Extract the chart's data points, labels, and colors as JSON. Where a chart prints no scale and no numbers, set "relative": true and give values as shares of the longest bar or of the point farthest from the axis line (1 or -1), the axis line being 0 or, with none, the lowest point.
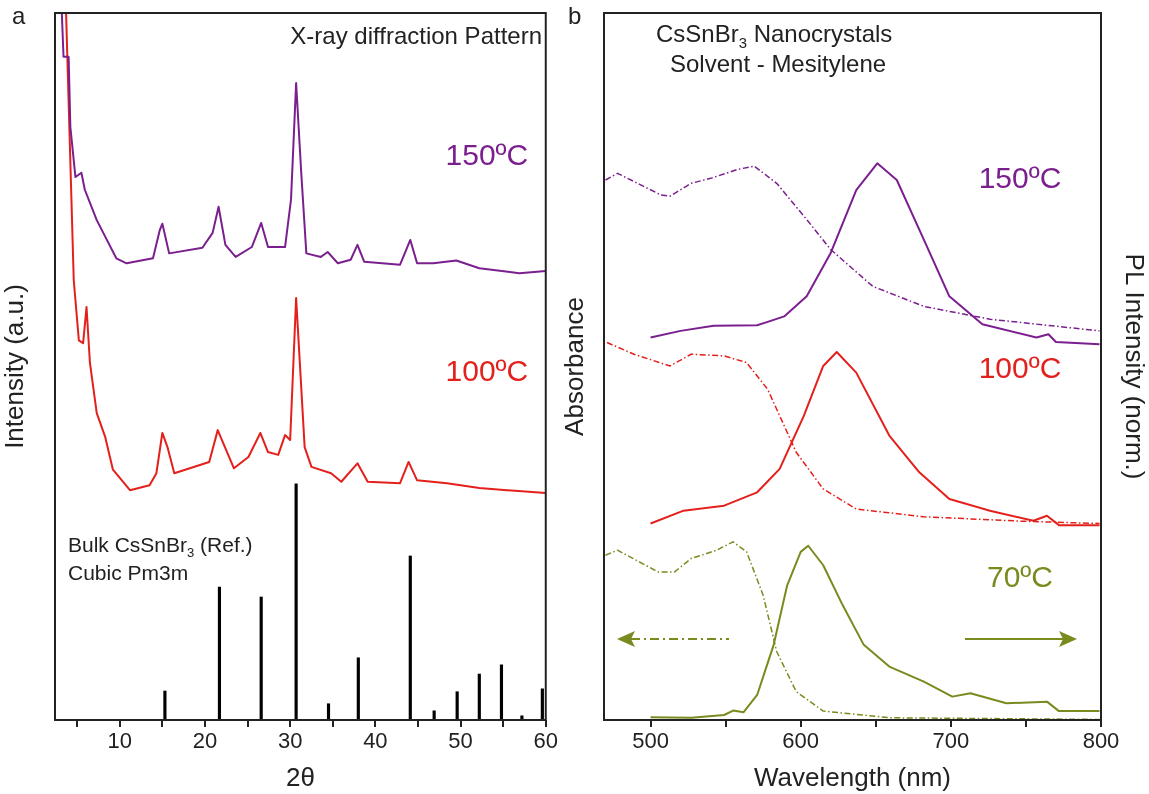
{
  "chart_data": [
    {
      "type": "line",
      "title": "X-ray diffraction Pattern",
      "xlabel": "2θ",
      "ylabel": "Intensity (a.u.)",
      "relative": true,
      "xlim": [
        2.4,
        60
      ],
      "xticks": [
        {
          "value": 5,
          "label": null
        },
        10,
        {
          "value": 15,
          "label": null
        },
        20,
        {
          "value": 25,
          "label": null
        },
        30,
        {
          "value": 35,
          "label": null
        },
        40,
        {
          "value": 45,
          "label": null
        },
        50,
        {
          "value": 55,
          "label": null
        },
        60
      ],
      "annotations": [
        "a",
        "Bulk CsSnBr$_{3}$ (Ref.)",
        "Cubic Pm3m"
      ],
      "series": [
        {
          "name": "150ºC",
          "color": "#7b1f8f",
          "x": [
            3.2,
            3.4,
            4.0,
            4.2,
            4.8,
            5.5,
            5.9,
            7.3,
            9.6,
            10.8,
            13.9,
            14.7,
            15.0,
            15.8,
            19.7,
            20.9,
            21.6,
            22.4,
            23.6,
            25.5,
            26.6,
            27.4,
            29.4,
            30.1,
            30.7,
            31.3,
            31.9,
            33.6,
            34.4,
            35.6,
            37.1,
            37.9,
            38.7,
            42.9,
            44.1,
            44.9,
            46.8,
            49.5,
            52.2,
            56.9,
            60
          ],
          "values": [
            1.0,
            0.938,
            0.938,
            0.839,
            0.768,
            0.774,
            0.75,
            0.707,
            0.653,
            0.646,
            0.653,
            0.693,
            0.702,
            0.66,
            0.668,
            0.689,
            0.726,
            0.672,
            0.655,
            0.669,
            0.703,
            0.669,
            0.669,
            0.736,
            0.901,
            0.774,
            0.66,
            0.655,
            0.662,
            0.646,
            0.651,
            0.672,
            0.648,
            0.644,
            0.679,
            0.646,
            0.646,
            0.65,
            0.639,
            0.632,
            0.635
          ]
        },
        {
          "name": "100ºC",
          "color": "#e3201b",
          "x": [
            3.7,
            4.6,
            5.2,
            5.7,
            6.1,
            6.5,
            7.3,
            8.3,
            9.2,
            11.2,
            13.5,
            14.3,
            15.0,
            15.6,
            16.4,
            20.5,
            21.5,
            23.4,
            25.1,
            26.5,
            27.4,
            28.6,
            29.4,
            30.0,
            30.7,
            31.7,
            32.5,
            34.8,
            36.0,
            37.9,
            39.1,
            42.9,
            43.9,
            44.9,
            48.4,
            52.2,
            60
          ],
          "values": [
            1.0,
            0.622,
            0.537,
            0.533,
            0.584,
            0.505,
            0.434,
            0.4,
            0.354,
            0.325,
            0.332,
            0.349,
            0.406,
            0.386,
            0.349,
            0.365,
            0.41,
            0.356,
            0.372,
            0.406,
            0.379,
            0.375,
            0.403,
            0.396,
            0.597,
            0.386,
            0.358,
            0.349,
            0.337,
            0.363,
            0.337,
            0.335,
            0.365,
            0.339,
            0.335,
            0.328,
            0.321
          ]
        },
        {
          "type": "bar",
          "color": "#000000",
          "x": [
            15.3,
            21.7,
            26.6,
            30.7,
            34.5,
            38.0,
            44.1,
            46.9,
            49.6,
            52.2,
            54.8,
            57.2,
            59.6
          ],
          "values": [
            0.041,
            0.188,
            0.174,
            0.334,
            0.023,
            0.088,
            0.232,
            0.013,
            0.04,
            0.065,
            0.078,
            0.006,
            0.044
          ]
        }
      ]
    },
    {
      "type": "line",
      "title": "CsSnBr$_{3}$ Nanocrystals",
      "subtitle": "Solvent - Mesitylene",
      "xlabel": "Wavelength (nm)",
      "ylabel": "Absorbance",
      "y2label": "PL Intensity (norm.)",
      "relative": true,
      "xlim": [
        469,
        800
      ],
      "xticks": [
        500,
        {
          "value": 550,
          "label": null
        },
        600,
        {
          "value": 650,
          "label": null
        },
        700,
        {
          "value": 750,
          "label": null
        },
        800
      ],
      "annotations": [
        "b"
      ],
      "series": [
        {
          "color": "#7b1f8f",
          "line_style": "dashed",
          "x": [
            470,
            478,
            507,
            513,
            527,
            540,
            558,
            569,
            584,
            604,
            620,
            648,
            682,
            726,
            799
          ],
          "values": [
            0.97,
            0.982,
            0.943,
            0.941,
            0.964,
            0.973,
            0.989,
            0.995,
            0.964,
            0.899,
            0.845,
            0.779,
            0.743,
            0.72,
            0.699
          ]
        },
        {
          "name": "150ºC",
          "color": "#7b1f8f",
          "x": [
            500,
            520,
            542,
            571,
            589,
            604,
            620,
            637,
            651,
            664,
            682,
            699,
            721,
            757,
            765,
            770,
            799
          ],
          "values": [
            0.687,
            0.699,
            0.708,
            0.709,
            0.725,
            0.761,
            0.839,
            0.952,
            1.0,
            0.97,
            0.863,
            0.761,
            0.711,
            0.687,
            0.693,
            0.679,
            0.675
          ]
        },
        {
          "color": "#e3201b",
          "line_style": "dashed",
          "x": [
            471,
            489,
            513,
            527,
            549,
            564,
            578,
            597,
            615,
            637,
            682,
            748,
            799
          ],
          "values": [
            0.678,
            0.657,
            0.636,
            0.657,
            0.654,
            0.642,
            0.594,
            0.481,
            0.415,
            0.379,
            0.365,
            0.357,
            0.353
          ]
        },
        {
          "name": "100ºC",
          "color": "#e3201b",
          "x": [
            500,
            522,
            549,
            571,
            586,
            602,
            615,
            624,
            637,
            659,
            679,
            699,
            726,
            755,
            764,
            772,
            799
          ],
          "values": [
            0.353,
            0.376,
            0.385,
            0.409,
            0.451,
            0.546,
            0.636,
            0.661,
            0.624,
            0.511,
            0.445,
            0.397,
            0.376,
            0.358,
            0.367,
            0.35,
            0.35
          ]
        },
        {
          "color": "#7a8a1e",
          "line_style": "dashed",
          "x": [
            470,
            478,
            505,
            516,
            527,
            544,
            555,
            564,
            575,
            584,
            597,
            615,
            659,
            799
          ],
          "values": [
            0.296,
            0.305,
            0.266,
            0.266,
            0.29,
            0.305,
            0.32,
            0.302,
            0.224,
            0.123,
            0.051,
            0.016,
            0.004,
            0.001
          ]
        },
        {
          "name": "70ºC",
          "color": "#7a8a1e",
          "x": [
            500,
            527,
            549,
            555,
            562,
            571,
            582,
            591,
            600,
            605,
            615,
            628,
            642,
            659,
            682,
            701,
            713,
            737,
            764,
            772,
            799
          ],
          "values": [
            0.005,
            0.004,
            0.009,
            0.017,
            0.014,
            0.045,
            0.135,
            0.242,
            0.302,
            0.313,
            0.278,
            0.206,
            0.135,
            0.096,
            0.069,
            0.042,
            0.048,
            0.03,
            0.033,
            0.016,
            0.016
          ]
        }
      ]
    }
  ]
}
